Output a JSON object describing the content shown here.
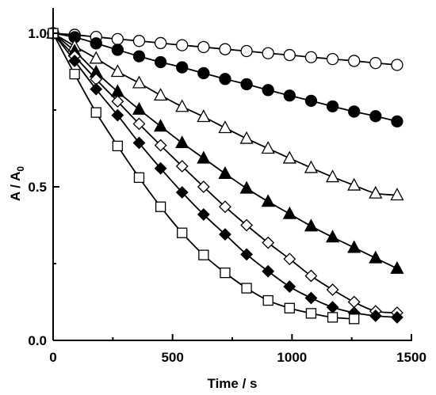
{
  "chart_data": {
    "type": "scatter",
    "xlabel": "Time / s",
    "ylabel_main": "A / A",
    "ylabel_sub": "0",
    "xlim": [
      0,
      1500
    ],
    "ylim": [
      0,
      1.1
    ],
    "x_ticks": [
      0,
      500,
      1000,
      1500
    ],
    "x_tick_labels": [
      "0",
      "500",
      "1000",
      "1500"
    ],
    "y_ticks": [
      0.0,
      0.5,
      1.0
    ],
    "y_tick_labels": [
      "0.0",
      "0.5",
      "1.0"
    ],
    "grid": false,
    "legend": "none",
    "series": [
      {
        "marker": "circle-open",
        "x": [
          0,
          90,
          180,
          270,
          360,
          450,
          540,
          630,
          720,
          810,
          900,
          990,
          1080,
          1170,
          1260,
          1350,
          1440
        ],
        "y": [
          1.0,
          0.995,
          0.988,
          0.981,
          0.975,
          0.968,
          0.961,
          0.955,
          0.948,
          0.942,
          0.935,
          0.929,
          0.922,
          0.916,
          0.91,
          0.903,
          0.897
        ]
      },
      {
        "marker": "circle-filled",
        "x": [
          0,
          90,
          180,
          270,
          360,
          450,
          540,
          630,
          720,
          810,
          900,
          990,
          1080,
          1170,
          1260,
          1350,
          1440
        ],
        "y": [
          1.0,
          0.987,
          0.967,
          0.946,
          0.925,
          0.906,
          0.889,
          0.87,
          0.851,
          0.834,
          0.815,
          0.797,
          0.78,
          0.762,
          0.745,
          0.73,
          0.713
        ]
      },
      {
        "marker": "triangle-open",
        "x": [
          0,
          90,
          180,
          270,
          360,
          450,
          540,
          630,
          720,
          810,
          900,
          990,
          1080,
          1170,
          1260,
          1350,
          1440
        ],
        "y": [
          1.0,
          0.958,
          0.918,
          0.875,
          0.838,
          0.798,
          0.761,
          0.728,
          0.692,
          0.657,
          0.625,
          0.593,
          0.562,
          0.532,
          0.505,
          0.479,
          0.473
        ]
      },
      {
        "marker": "triangle-filled",
        "x": [
          0,
          90,
          180,
          270,
          360,
          450,
          540,
          630,
          720,
          810,
          900,
          990,
          1080,
          1170,
          1260,
          1350,
          1440
        ],
        "y": [
          1.0,
          0.942,
          0.873,
          0.81,
          0.752,
          0.697,
          0.643,
          0.593,
          0.543,
          0.495,
          0.452,
          0.412,
          0.372,
          0.336,
          0.302,
          0.268,
          0.234
        ]
      },
      {
        "marker": "diamond-open",
        "x": [
          0,
          90,
          180,
          270,
          360,
          450,
          540,
          630,
          720,
          810,
          900,
          990,
          1080,
          1170,
          1260,
          1350,
          1440
        ],
        "y": [
          1.0,
          0.925,
          0.85,
          0.778,
          0.705,
          0.635,
          0.567,
          0.5,
          0.435,
          0.375,
          0.318,
          0.265,
          0.21,
          0.165,
          0.125,
          0.095,
          0.09
        ]
      },
      {
        "marker": "diamond-filled",
        "x": [
          0,
          90,
          180,
          270,
          360,
          450,
          540,
          630,
          720,
          810,
          900,
          990,
          1080,
          1170,
          1260,
          1350,
          1440
        ],
        "y": [
          1.0,
          0.91,
          0.818,
          0.733,
          0.643,
          0.56,
          0.482,
          0.41,
          0.345,
          0.28,
          0.225,
          0.175,
          0.138,
          0.108,
          0.09,
          0.08,
          0.075
        ]
      },
      {
        "marker": "square-open",
        "x": [
          0,
          90,
          180,
          270,
          360,
          450,
          540,
          630,
          720,
          810,
          900,
          990,
          1080,
          1170,
          1260
        ],
        "y": [
          1.0,
          0.867,
          0.742,
          0.633,
          0.53,
          0.435,
          0.35,
          0.278,
          0.22,
          0.17,
          0.13,
          0.105,
          0.088,
          0.075,
          0.07
        ]
      }
    ]
  }
}
